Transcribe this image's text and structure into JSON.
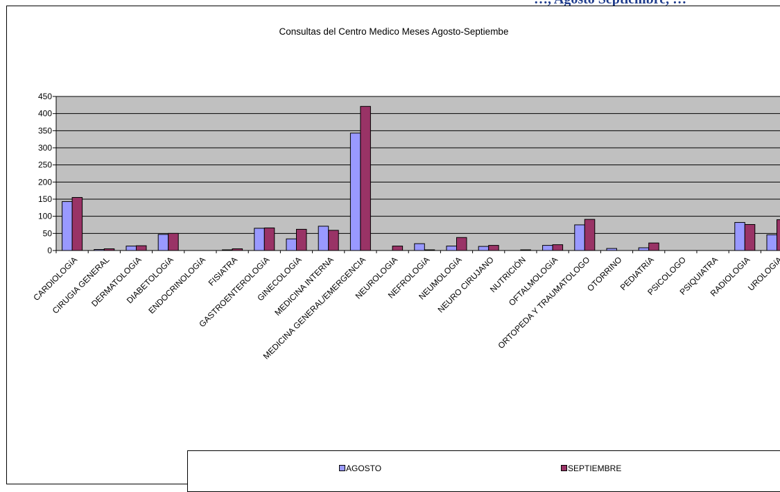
{
  "page_heading": "…, Agosto Septiembre, …",
  "chart_data": {
    "type": "bar",
    "title": "Consultas del Centro Medico Meses Agosto-Septiembe",
    "xlabel": "",
    "ylabel": "",
    "ylim": [
      0,
      450
    ],
    "yticks": [
      0,
      50,
      100,
      150,
      200,
      250,
      300,
      350,
      400,
      450
    ],
    "grid": true,
    "legend_position": "bottom",
    "categories": [
      "CARDIOLOGíA",
      "CIRUGIA GENERAL",
      "DERMATOLOGíA",
      "DIABETOLOGíA",
      "ENDOCRINOLOGíA",
      "FISIATRA",
      "GASTROENTEROLOGíA",
      "GINECOLOGíA",
      "MEDICINA INTERNA",
      "MEDICINA GENERAL/EMERGENCIA",
      "NEUROLOGIA",
      "NEFROLOGíA",
      "NEUMOLOGíA",
      "NEURO CIRUJANO",
      "NUTRICIÓN",
      "OFTALMOLOGíA",
      "ORTOPEDA Y TRAUMATOLOGO",
      "OTORRINO",
      "PEDIATRíA",
      "PSICOLOGO",
      "PSIQUIATRA",
      "RADIOLOGIA",
      "UROLOGíA"
    ],
    "series": [
      {
        "name": "AGOSTO",
        "color": "#9999ff",
        "values": [
          143,
          3,
          13,
          47,
          0,
          2,
          65,
          34,
          71,
          343,
          0,
          20,
          13,
          12,
          0,
          15,
          75,
          6,
          8,
          0,
          0,
          82,
          46
        ]
      },
      {
        "name": "SEPTIEMBRE",
        "color": "#993366",
        "values": [
          155,
          5,
          14,
          50,
          0,
          5,
          66,
          62,
          59,
          421,
          13,
          2,
          38,
          15,
          2,
          17,
          91,
          0,
          22,
          0,
          0,
          76,
          90
        ]
      }
    ],
    "plot_background": "#c0c0c0"
  }
}
